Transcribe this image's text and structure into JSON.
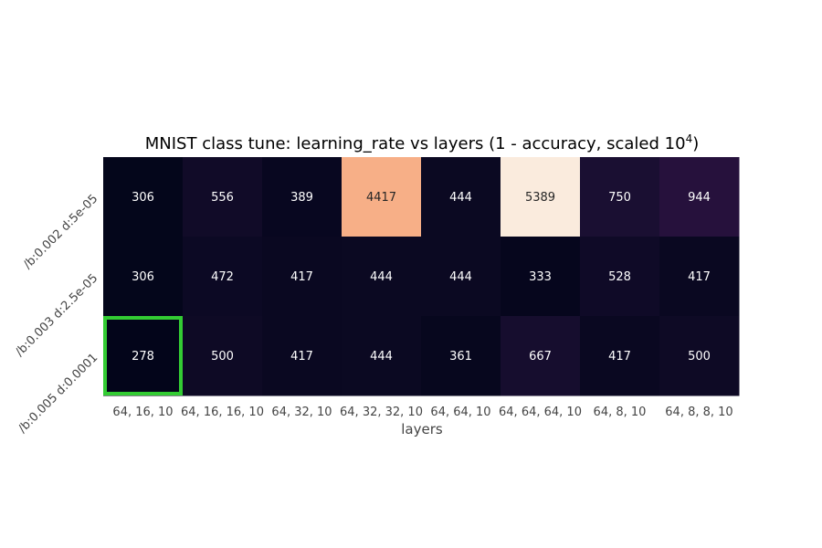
{
  "chart_data": {
    "type": "heatmap",
    "title": "MNIST class tune: learning_rate vs layers (1 - accuracy, scaled 10",
    "title_superscript": "4",
    "title_suffix": ")",
    "xlabel": "layers",
    "ylabel": "",
    "x_categories": [
      "64, 16, 10",
      "64, 16, 16, 10",
      "64, 32, 10",
      "64, 32, 32, 10",
      "64, 64, 10",
      "64, 64, 64, 10",
      "64, 8, 10",
      "64, 8, 8, 10"
    ],
    "y_categories": [
      "/b:0.002 d:5e-05",
      "/b:0.003 d:2.5e-05",
      "/b:0.005 d:0.0001"
    ],
    "values": [
      [
        306,
        556,
        389,
        4417,
        444,
        5389,
        750,
        944
      ],
      [
        306,
        472,
        417,
        444,
        444,
        333,
        528,
        417
      ],
      [
        278,
        500,
        417,
        444,
        361,
        667,
        417,
        500
      ]
    ],
    "colormap": "rocket",
    "highlight": {
      "row": 2,
      "col": 0,
      "color": "#33cc33"
    },
    "colorbar": false,
    "grid": false
  }
}
